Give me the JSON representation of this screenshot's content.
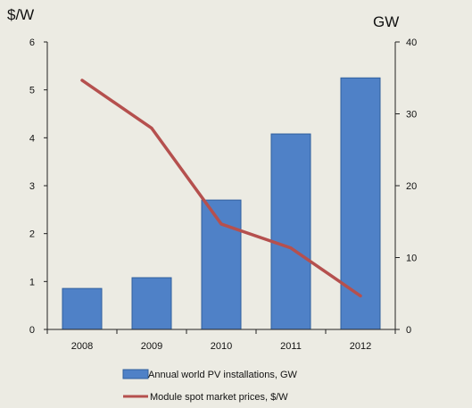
{
  "chart_data": {
    "type": "bar",
    "categories": [
      "2008",
      "2009",
      "2010",
      "2011",
      "2012"
    ],
    "series": [
      {
        "name": "Annual world PV installations, GW",
        "type": "bar",
        "axis": "right",
        "color": "#4f81c7",
        "values": [
          5.7,
          7.2,
          18.0,
          27.2,
          35.0
        ]
      },
      {
        "name": "Module spot market prices, $/W",
        "type": "line",
        "axis": "left",
        "color": "#b5504e",
        "values": [
          5.2,
          4.2,
          2.2,
          1.7,
          0.7
        ]
      }
    ],
    "y_left": {
      "label": "$/W",
      "ylim": [
        0,
        6
      ],
      "ticks": [
        "0",
        "1",
        "2",
        "3",
        "4",
        "5",
        "6"
      ]
    },
    "y_right": {
      "label": "GW",
      "ylim": [
        0,
        40
      ],
      "ticks": [
        "0",
        "10",
        "20",
        "30",
        "40"
      ]
    },
    "grid": false,
    "legend_position": "bottom"
  }
}
